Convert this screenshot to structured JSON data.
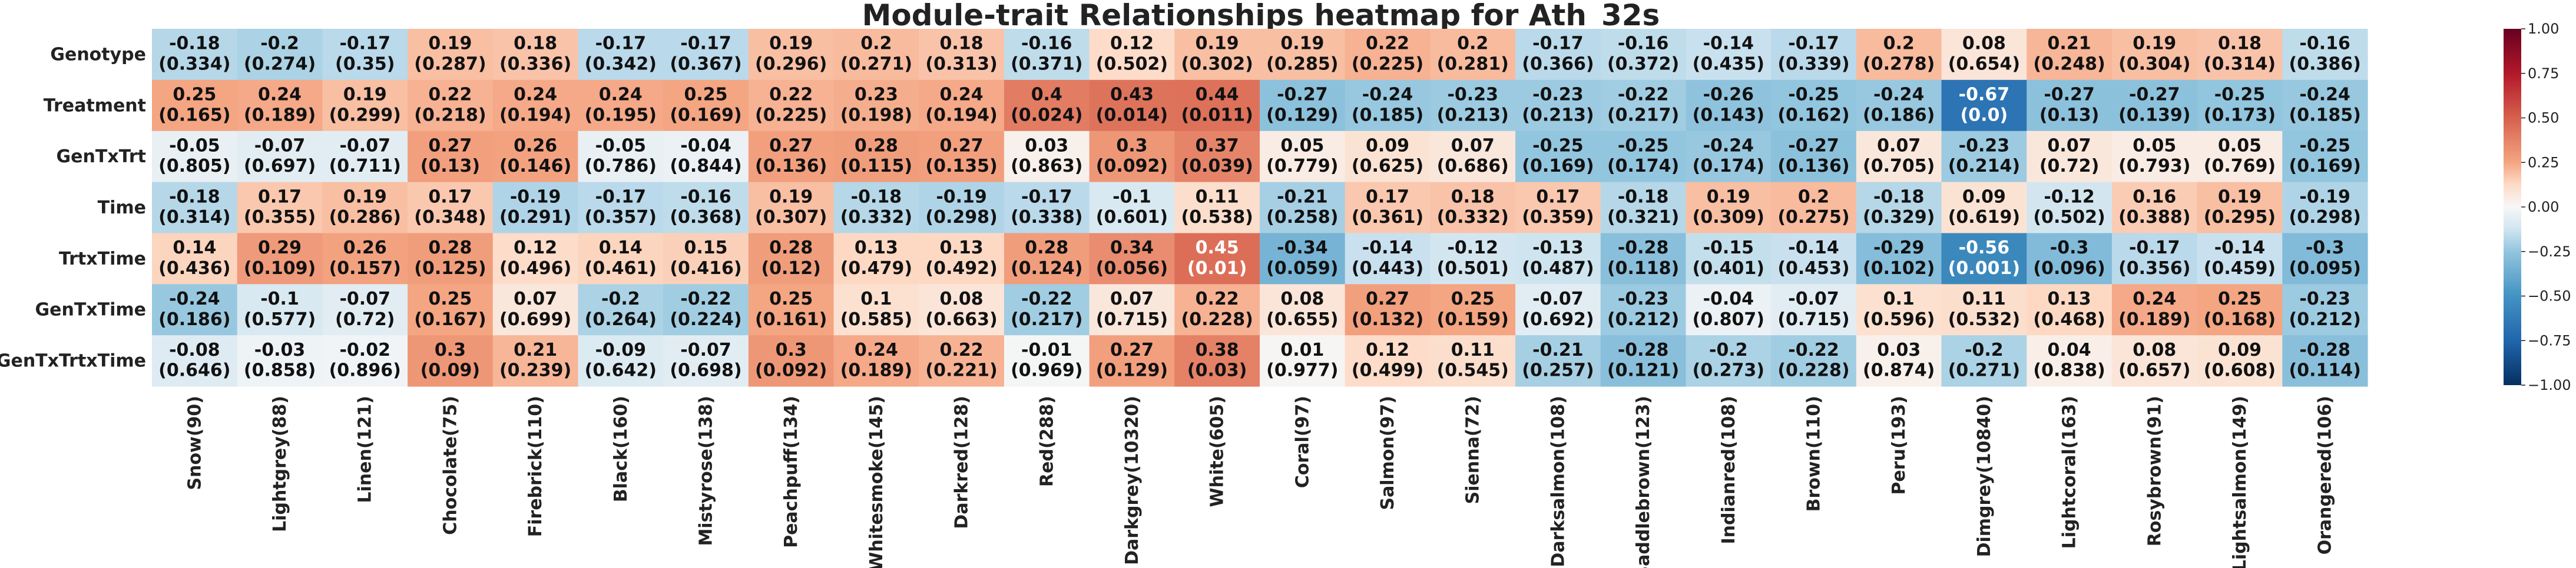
{
  "chart_data": {
    "type": "heatmap",
    "title": "Module-trait Relationships heatmap for Ath_32s",
    "rows": [
      "Genotype",
      "Treatment",
      "GenTxTrt",
      "Time",
      "TrtxTime",
      "GenTxTime",
      "GenTxTrtxTime"
    ],
    "columns": [
      "Snow(90)",
      "Lightgrey(88)",
      "Linen(121)",
      "Chocolate(75)",
      "Firebrick(110)",
      "Black(160)",
      "Mistyrose(138)",
      "Peachpuff(134)",
      "Whitesmoke(145)",
      "Darkred(128)",
      "Red(288)",
      "Darkgrey(10320)",
      "White(605)",
      "Coral(97)",
      "Salmon(97)",
      "Sienna(72)",
      "Darksalmon(108)",
      "Saddlebrown(123)",
      "Indianred(108)",
      "Brown(110)",
      "Peru(193)",
      "Dimgrey(10840)",
      "Lightcoral(163)",
      "Rosybrown(91)",
      "Lightsalmon(149)",
      "Orangered(106)"
    ],
    "values": [
      [
        -0.18,
        -0.2,
        -0.17,
        0.19,
        0.18,
        -0.17,
        -0.17,
        0.19,
        0.2,
        0.18,
        -0.16,
        0.12,
        0.19,
        0.19,
        0.22,
        0.2,
        -0.17,
        -0.16,
        -0.14,
        -0.17,
        0.2,
        0.08,
        0.21,
        0.19,
        0.18,
        -0.16
      ],
      [
        0.25,
        0.24,
        0.19,
        0.22,
        0.24,
        0.24,
        0.25,
        0.22,
        0.23,
        0.24,
        0.4,
        0.43,
        0.44,
        -0.27,
        -0.24,
        -0.23,
        -0.23,
        -0.22,
        -0.26,
        -0.25,
        -0.24,
        -0.67,
        -0.27,
        -0.27,
        -0.25,
        -0.24
      ],
      [
        -0.05,
        -0.07,
        -0.07,
        0.27,
        0.26,
        -0.05,
        -0.04,
        0.27,
        0.28,
        0.27,
        0.03,
        0.3,
        0.37,
        0.05,
        0.09,
        0.07,
        -0.25,
        -0.25,
        -0.24,
        -0.27,
        0.07,
        -0.23,
        0.07,
        0.05,
        0.05,
        -0.25
      ],
      [
        -0.18,
        0.17,
        0.19,
        0.17,
        -0.19,
        -0.17,
        -0.16,
        0.19,
        -0.18,
        -0.19,
        -0.17,
        -0.1,
        0.11,
        -0.21,
        0.17,
        0.18,
        0.17,
        -0.18,
        0.19,
        0.2,
        -0.18,
        0.09,
        -0.12,
        0.16,
        0.19,
        -0.19
      ],
      [
        0.14,
        0.29,
        0.26,
        0.28,
        0.12,
        0.14,
        0.15,
        0.28,
        0.13,
        0.13,
        0.28,
        0.34,
        0.45,
        -0.34,
        -0.14,
        -0.12,
        -0.13,
        -0.28,
        -0.15,
        -0.14,
        -0.29,
        -0.56,
        -0.3,
        -0.17,
        -0.14,
        -0.3
      ],
      [
        -0.24,
        -0.1,
        -0.07,
        0.25,
        0.07,
        -0.2,
        -0.22,
        0.25,
        0.1,
        0.08,
        -0.22,
        0.07,
        0.22,
        0.08,
        0.27,
        0.25,
        -0.07,
        -0.23,
        -0.04,
        -0.07,
        0.1,
        0.11,
        0.13,
        0.24,
        0.25,
        -0.23
      ],
      [
        -0.08,
        -0.03,
        -0.02,
        0.3,
        0.21,
        -0.09,
        -0.07,
        0.3,
        0.24,
        0.22,
        -0.01,
        0.27,
        0.38,
        0.01,
        0.12,
        0.11,
        -0.21,
        -0.28,
        -0.2,
        -0.22,
        0.03,
        -0.2,
        0.04,
        0.08,
        0.09,
        -0.28
      ]
    ],
    "pvalues": [
      [
        "(0.334)",
        "(0.274)",
        "(0.35)",
        "(0.287)",
        "(0.336)",
        "(0.342)",
        "(0.367)",
        "(0.296)",
        "(0.271)",
        "(0.313)",
        "(0.371)",
        "(0.502)",
        "(0.302)",
        "(0.285)",
        "(0.225)",
        "(0.281)",
        "(0.366)",
        "(0.372)",
        "(0.435)",
        "(0.339)",
        "(0.278)",
        "(0.654)",
        "(0.248)",
        "(0.304)",
        "(0.314)",
        "(0.386)"
      ],
      [
        "(0.165)",
        "(0.189)",
        "(0.299)",
        "(0.218)",
        "(0.194)",
        "(0.195)",
        "(0.169)",
        "(0.225)",
        "(0.198)",
        "(0.194)",
        "(0.024)",
        "(0.014)",
        "(0.011)",
        "(0.129)",
        "(0.185)",
        "(0.213)",
        "(0.213)",
        "(0.217)",
        "(0.143)",
        "(0.162)",
        "(0.186)",
        "(0.0)",
        "(0.13)",
        "(0.139)",
        "(0.173)",
        "(0.185)"
      ],
      [
        "(0.805)",
        "(0.697)",
        "(0.711)",
        "(0.13)",
        "(0.146)",
        "(0.786)",
        "(0.844)",
        "(0.136)",
        "(0.115)",
        "(0.135)",
        "(0.863)",
        "(0.092)",
        "(0.039)",
        "(0.779)",
        "(0.625)",
        "(0.686)",
        "(0.169)",
        "(0.174)",
        "(0.174)",
        "(0.136)",
        "(0.705)",
        "(0.214)",
        "(0.72)",
        "(0.793)",
        "(0.769)",
        "(0.169)"
      ],
      [
        "(0.314)",
        "(0.355)",
        "(0.286)",
        "(0.348)",
        "(0.291)",
        "(0.357)",
        "(0.368)",
        "(0.307)",
        "(0.332)",
        "(0.298)",
        "(0.338)",
        "(0.601)",
        "(0.538)",
        "(0.258)",
        "(0.361)",
        "(0.332)",
        "(0.359)",
        "(0.321)",
        "(0.309)",
        "(0.275)",
        "(0.329)",
        "(0.619)",
        "(0.502)",
        "(0.388)",
        "(0.295)",
        "(0.298)"
      ],
      [
        "(0.436)",
        "(0.109)",
        "(0.157)",
        "(0.125)",
        "(0.496)",
        "(0.461)",
        "(0.416)",
        "(0.12)",
        "(0.479)",
        "(0.492)",
        "(0.124)",
        "(0.056)",
        "(0.01)",
        "(0.059)",
        "(0.443)",
        "(0.501)",
        "(0.487)",
        "(0.118)",
        "(0.401)",
        "(0.453)",
        "(0.102)",
        "(0.001)",
        "(0.096)",
        "(0.356)",
        "(0.459)",
        "(0.095)"
      ],
      [
        "(0.186)",
        "(0.577)",
        "(0.72)",
        "(0.167)",
        "(0.699)",
        "(0.264)",
        "(0.224)",
        "(0.161)",
        "(0.585)",
        "(0.663)",
        "(0.217)",
        "(0.715)",
        "(0.228)",
        "(0.655)",
        "(0.132)",
        "(0.159)",
        "(0.692)",
        "(0.212)",
        "(0.807)",
        "(0.715)",
        "(0.596)",
        "(0.532)",
        "(0.468)",
        "(0.189)",
        "(0.168)",
        "(0.212)"
      ],
      [
        "(0.646)",
        "(0.858)",
        "(0.896)",
        "(0.09)",
        "(0.239)",
        "(0.642)",
        "(0.698)",
        "(0.092)",
        "(0.189)",
        "(0.221)",
        "(0.969)",
        "(0.129)",
        "(0.03)",
        "(0.977)",
        "(0.499)",
        "(0.545)",
        "(0.257)",
        "(0.121)",
        "(0.273)",
        "(0.228)",
        "(0.874)",
        "(0.271)",
        "(0.838)",
        "(0.657)",
        "(0.608)",
        "(0.114)"
      ]
    ],
    "vmin": -1.0,
    "vmax": 1.0,
    "colormap": "RdBu_r",
    "colorbar_ticks": [
      "1.00",
      "0.75",
      "0.50",
      "0.25",
      "0.00",
      "−0.25",
      "−0.50",
      "−0.75",
      "−1.00"
    ]
  }
}
